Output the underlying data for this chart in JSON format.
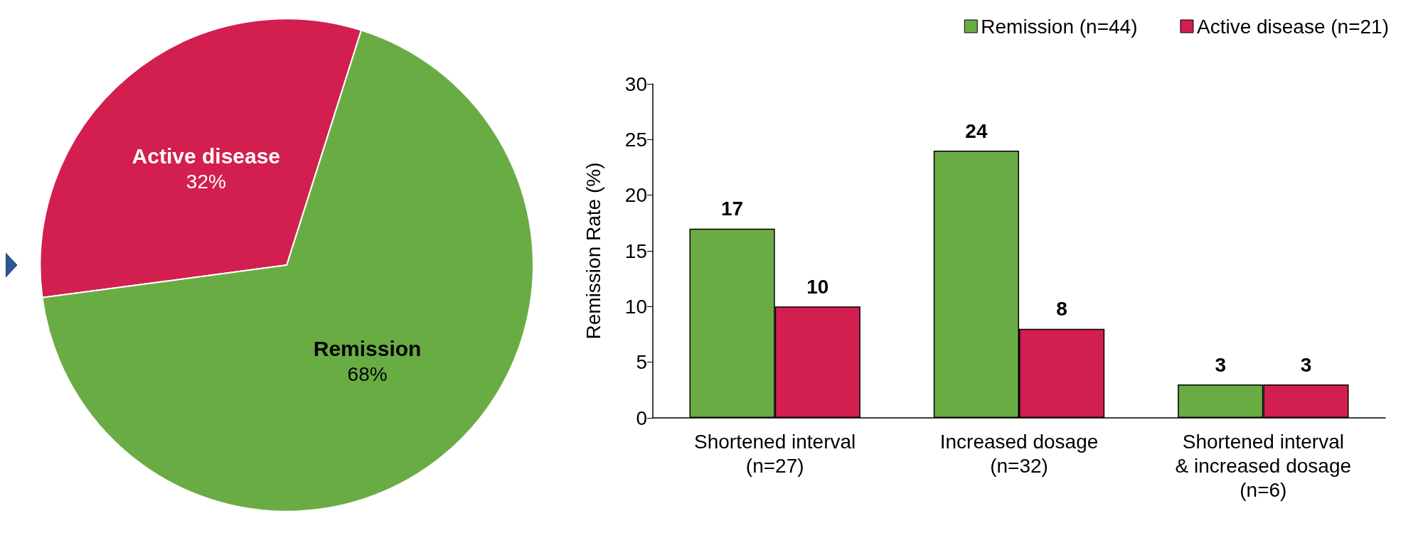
{
  "chart_data": [
    {
      "type": "pie",
      "categories": [
        "Active disease",
        "Remission"
      ],
      "values": [
        32,
        68
      ],
      "colors": [
        "#d21f50",
        "#6aac44"
      ],
      "value_labels": [
        "32%",
        "68%"
      ],
      "legend": false
    },
    {
      "type": "bar",
      "ylabel": "Remission Rate (%)",
      "categories": [
        "Shortened interval\n(n=27)",
        "Increased dosage\n(n=32)",
        "Shortened interval\n& increased dosage\n(n=6)"
      ],
      "series": [
        {
          "name": "Remission (n=44)",
          "color": "#6aac44",
          "values": [
            17,
            24,
            3
          ]
        },
        {
          "name": "Active disease (n=21)",
          "color": "#d21f50",
          "values": [
            10,
            8,
            3
          ]
        }
      ],
      "ylim": [
        0,
        30
      ],
      "yticks": [
        0,
        5,
        10,
        15,
        20,
        25,
        30
      ],
      "grid": false,
      "legend": "top right",
      "data_labels": true
    }
  ]
}
